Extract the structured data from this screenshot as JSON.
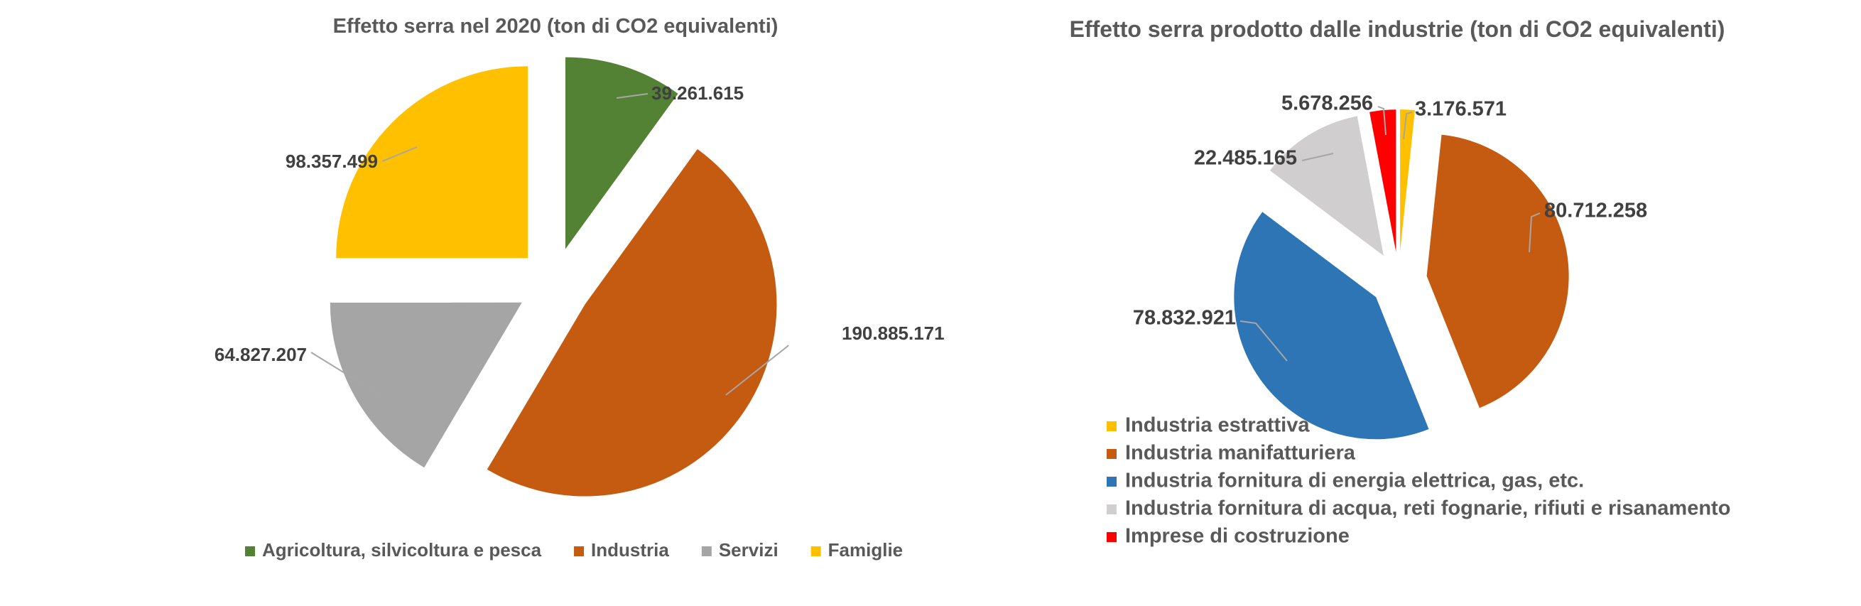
{
  "chart_data": [
    {
      "type": "pie",
      "title": "Effetto serra nel 2020 (ton di CO2 equivalenti)",
      "legend_position": "bottom",
      "slices": [
        {
          "name": "Agricoltura, silvicoltura e pesca",
          "value": 39261615,
          "label": "39.261.615",
          "color": "#548235"
        },
        {
          "name": "Industria",
          "value": 190885171,
          "label": "190.885.171",
          "color": "#c55a11"
        },
        {
          "name": "Servizi",
          "value": 64827207,
          "label": "64.827.207",
          "color": "#a5a5a5"
        },
        {
          "name": "Famiglie",
          "value": 98357499,
          "label": "98.357.499",
          "color": "#ffc000"
        }
      ]
    },
    {
      "type": "pie",
      "title": "Effetto serra prodotto dalle  industrie (ton di CO2 equivalenti)",
      "legend_position": "bottom-left",
      "slices": [
        {
          "name": "Industria estrattiva",
          "value": 3176571,
          "label": "3.176.571",
          "color": "#ffc000"
        },
        {
          "name": "Industria manifatturiera",
          "value": 80712258,
          "label": "80.712.258",
          "color": "#c55a11"
        },
        {
          "name": "Industria fornitura di energia elettrica, gas, etc.",
          "value": 78832921,
          "label": "78.832.921",
          "color": "#2e75b6"
        },
        {
          "name": "Industria fornitura di acqua, reti fognarie, rifiuti e risanamento",
          "value": 22485165,
          "label": "22.485.165",
          "color": "#d0cece"
        },
        {
          "name": "Imprese di costruzione",
          "value": 5678256,
          "label": "5.678.256",
          "color": "#ff0000"
        }
      ]
    }
  ]
}
